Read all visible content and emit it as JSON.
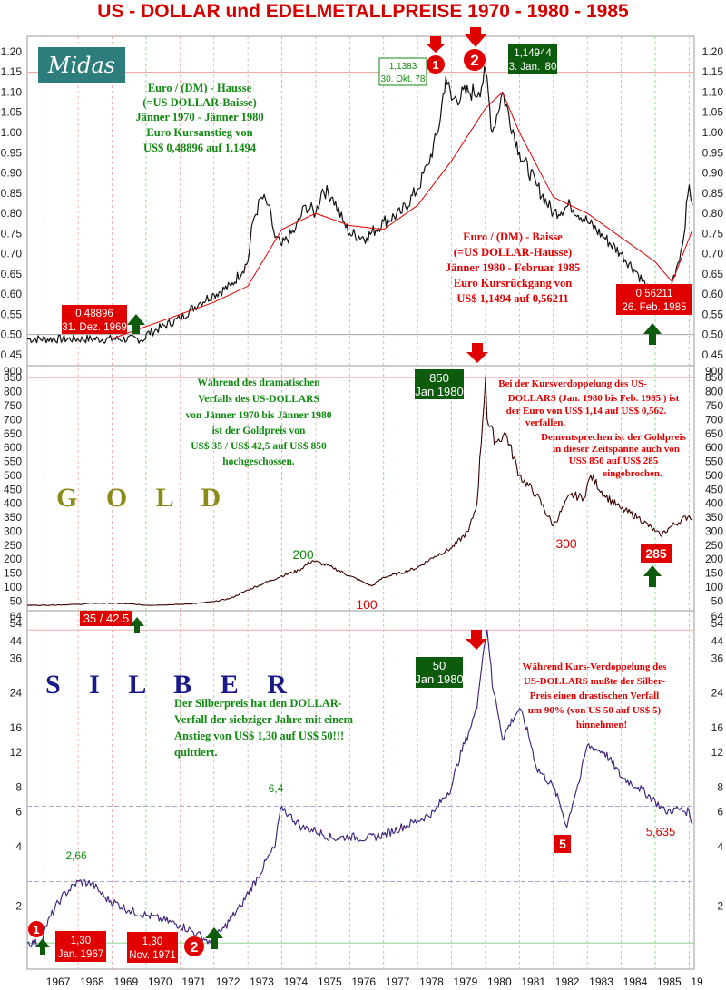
{
  "title": "US - DOLLAR  und EDELMETALLPREISE  1970 - 1980 - 1985",
  "logo": "Midas",
  "colors": {
    "title": "#d40000",
    "green": "#118a11",
    "red": "#e00000",
    "darkgreen": "#0d5c0d",
    "gold_text": "#8b8b1a",
    "silver_text": "#1a1a8b",
    "ma": "#e00000"
  },
  "years": [
    "1967",
    "1968",
    "1969",
    "1970",
    "1971",
    "1972",
    "1973",
    "1974",
    "1975",
    "1976",
    "1977",
    "1978",
    "1979",
    "1980",
    "1981",
    "1982",
    "1983",
    "1984",
    "1985",
    "19"
  ],
  "chart_data": [
    {
      "type": "line",
      "name": "euro",
      "ylim": [
        0.45,
        1.22
      ],
      "y_ticks": [
        "0.45",
        "0.50",
        "0.55",
        "0.60",
        "0.65",
        "0.70",
        "0.75",
        "0.80",
        "0.85",
        "0.90",
        "0.95",
        "1.00",
        "1.05",
        "1.10",
        "1.15",
        "1.20"
      ],
      "x": [
        1966.5,
        1969.99,
        1970.0,
        1971.0,
        1971.6,
        1972.0,
        1972.5,
        1973.0,
        1973.15,
        1973.4,
        1973.6,
        1973.8,
        1974.0,
        1974.4,
        1974.7,
        1975.0,
        1975.2,
        1975.5,
        1975.8,
        1976.0,
        1976.5,
        1977.0,
        1977.5,
        1978.0,
        1978.3,
        1978.6,
        1978.83,
        1979.0,
        1979.5,
        1979.8,
        1980.01,
        1980.2,
        1980.5,
        1981.0,
        1981.5,
        1982.0,
        1982.5,
        1983.0,
        1983.5,
        1984.0,
        1984.5,
        1985.0,
        1985.15,
        1985.5,
        1985.8,
        1986.0,
        1986.1
      ],
      "values": [
        0.489,
        0.489,
        0.5,
        0.54,
        0.58,
        0.6,
        0.62,
        0.68,
        0.78,
        0.84,
        0.82,
        0.74,
        0.72,
        0.76,
        0.82,
        0.8,
        0.86,
        0.84,
        0.78,
        0.75,
        0.74,
        0.78,
        0.8,
        0.86,
        0.92,
        1.0,
        1.138,
        1.08,
        1.1,
        1.1,
        1.149,
        1.0,
        1.1,
        0.95,
        0.87,
        0.8,
        0.82,
        0.78,
        0.74,
        0.7,
        0.65,
        0.58,
        0.562,
        0.63,
        0.72,
        0.87,
        0.82
      ],
      "ma": {
        "x": [
          1969.0,
          1972.0,
          1973.0,
          1974.0,
          1975.0,
          1976.0,
          1977.0,
          1978.0,
          1979.0,
          1980.0,
          1980.5,
          1981.0,
          1982.0,
          1983.0,
          1984.0,
          1985.0,
          1985.5,
          1986.1
        ],
        "values": [
          0.49,
          0.58,
          0.62,
          0.76,
          0.8,
          0.77,
          0.76,
          0.82,
          0.93,
          1.06,
          1.1,
          1.0,
          0.84,
          0.8,
          0.74,
          0.68,
          0.63,
          0.76
        ]
      }
    },
    {
      "type": "line",
      "name": "gold",
      "label": "G O L D",
      "ylim": [
        35,
        880
      ],
      "y_ticks": [
        "50",
        "100",
        "150",
        "200",
        "250",
        "300",
        "350",
        "400",
        "450",
        "500",
        "550",
        "600",
        "650",
        "700",
        "750",
        "800",
        "850",
        "900"
      ],
      "x": [
        1966.5,
        1967.0,
        1968.0,
        1968.4,
        1969.0,
        1969.5,
        1970.0,
        1971.0,
        1971.5,
        1972.0,
        1972.5,
        1973.0,
        1973.5,
        1974.0,
        1974.5,
        1974.9,
        1975.5,
        1976.0,
        1976.65,
        1977.0,
        1977.5,
        1978.0,
        1978.5,
        1979.0,
        1979.5,
        1979.75,
        1980.0,
        1980.05,
        1980.3,
        1980.6,
        1981.0,
        1981.5,
        1982.0,
        1982.5,
        1982.9,
        1983.1,
        1983.5,
        1984.0,
        1984.5,
        1985.0,
        1985.15,
        1985.5,
        1986.0,
        1986.1
      ],
      "values": [
        35,
        35,
        38,
        42,
        42,
        40,
        35,
        38,
        42,
        48,
        60,
        90,
        115,
        140,
        160,
        195,
        170,
        140,
        104,
        135,
        150,
        170,
        210,
        240,
        300,
        400,
        850,
        700,
        620,
        650,
        500,
        430,
        320,
        430,
        420,
        500,
        430,
        380,
        350,
        300,
        285,
        320,
        355,
        345
      ]
    },
    {
      "type": "line",
      "name": "silber",
      "label": "S I L B E R",
      "scale": "log",
      "ylim": [
        1.0,
        60
      ],
      "y_ticks": [
        "2",
        "4",
        "6",
        "8",
        "12",
        "16",
        "24",
        "36",
        "44",
        "54",
        "64"
      ],
      "x": [
        1966.5,
        1966.9,
        1967.0,
        1967.5,
        1968.0,
        1968.4,
        1968.8,
        1969.5,
        1970.0,
        1970.5,
        1971.0,
        1971.5,
        1971.9,
        1972.3,
        1972.8,
        1973.3,
        1973.8,
        1974.0,
        1974.2,
        1974.6,
        1975.0,
        1975.5,
        1976.0,
        1976.5,
        1977.0,
        1978.0,
        1978.5,
        1979.0,
        1979.5,
        1979.75,
        1980.05,
        1980.2,
        1980.5,
        1981.0,
        1981.5,
        1982.0,
        1982.4,
        1982.8,
        1983.0,
        1983.5,
        1984.0,
        1984.5,
        1985.0,
        1985.3,
        1985.6,
        1986.0,
        1986.1
      ],
      "values": [
        1.3,
        1.3,
        1.5,
        2.2,
        2.66,
        2.6,
        2.2,
        1.9,
        1.8,
        1.7,
        1.6,
        1.45,
        1.3,
        1.55,
        2.0,
        2.8,
        4.0,
        6.4,
        5.8,
        5.0,
        4.8,
        4.4,
        4.5,
        4.4,
        4.6,
        5.4,
        6.0,
        8.0,
        15,
        20,
        50,
        26,
        14,
        20,
        10,
        8.0,
        5.0,
        9.0,
        13,
        12,
        9.0,
        8.0,
        6.8,
        6.0,
        6.2,
        6.0,
        5.2
      ]
    }
  ],
  "panel_labels": {
    "gold": "G O L D",
    "silver": "S I L B E R"
  },
  "euro_text": {
    "green_lines": [
      "Euro / (DM) - Hausse",
      "(=US DOLLAR-Baisse)",
      "Jänner 1970 - Jänner 1980",
      "Euro  Kursanstieg von",
      "US$ 0,48896 auf  1,1494"
    ],
    "red_lines": [
      "Euro / (DM) - Baisse",
      "(=US DOLLAR-Hausse)",
      "Jänner 1980 - Februar 1985",
      "Euro  Kursrückgang von",
      "US$ 1,1494 auf  0,56211"
    ],
    "box_low": [
      "0,48896",
      "31. Dez. 1969"
    ],
    "box_1138": [
      "1,1383",
      "30. Okt. 78"
    ],
    "box_high": [
      "1,14944",
      "3. Jan. '80"
    ],
    "box_end": [
      "0,56211",
      "26. Feb. 1985"
    ],
    "circle1": "1",
    "circle2": "2"
  },
  "gold_text": {
    "green_lines": [
      "Während des dramatischen",
      "Verfalls des US-DOLLARS",
      "von Jänner 1970 bis Jänner 1980",
      "ist der Goldpreis von",
      "US$ 35 / US$ 42,5 auf US$ 850",
      "hochgeschossen."
    ],
    "red_lines": [
      "Bei der Kursverdoppelung des  US-",
      "DOLLARS  (Jan. 1980 bis Feb. 1985 ) ist",
      "der Euro von  US$ 1,14 auf US$ 0,562.",
      "verfallen.",
      "Dementsprechen ist der Goldpreis",
      "in  dieser Zeitspanne auch   von",
      "US$ 850 auf US$ 285",
      "eingebrochen."
    ],
    "box_high": [
      "850",
      "Jan 1980"
    ],
    "box_low": "35 / 42.5",
    "box_end": "285",
    "l200": "200",
    "l100": "100",
    "l300": "300"
  },
  "silver_text": {
    "green_lines": [
      "Der Silberpreis hat den DOLLAR-",
      "Verfall der siebziger Jahre mit einem",
      "Anstieg von US$ 1,30 auf US$ 50!!!",
      "quittiert."
    ],
    "red_lines": [
      "Während  Kurs-Verdoppelung des",
      "US-DOLLARS mußte der Silber-",
      "Preis einen drastischen Verfall",
      "um 90%  (von US 50 auf US$ 5)",
      "hinnehmen!"
    ],
    "box_high": [
      "50",
      "Jan 1980"
    ],
    "box_1967": [
      "1,30",
      "Jan. 1967"
    ],
    "box_1971": [
      "1,30",
      "Nov. 1971"
    ],
    "box_5": "5",
    "l266": "2,66",
    "l64": "6,4",
    "l5635": "5,635",
    "circle1": "1",
    "circle2": "2"
  }
}
